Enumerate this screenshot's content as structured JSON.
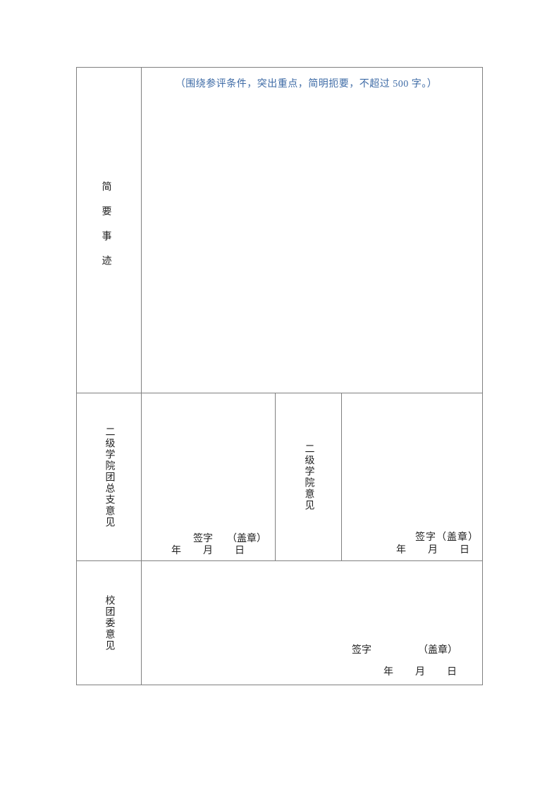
{
  "colors": {
    "hint_blue": "#3e6ba6",
    "border_gray": "#7f7f7f",
    "text_dark": "#1f1f1f"
  },
  "form": {
    "brief_deeds": {
      "label": "简要事迹",
      "hint": "（围绕参评条件，突出重点，简明扼要，不超过 500 字。）"
    },
    "league_branch_opinion": {
      "label": "二级学院团总支意见",
      "signature_label": "签字",
      "seal_label": "（盖章）",
      "date_label": "年　　月　　日"
    },
    "college_opinion": {
      "label": "二级学院意见",
      "signature_seal_label": "签字（盖章）",
      "date_label": "年　　月　　日"
    },
    "committee_opinion": {
      "label": "校团委意见",
      "signature_label": "签字",
      "seal_label": "（盖章）",
      "date_label": "年　　月　　日"
    }
  }
}
